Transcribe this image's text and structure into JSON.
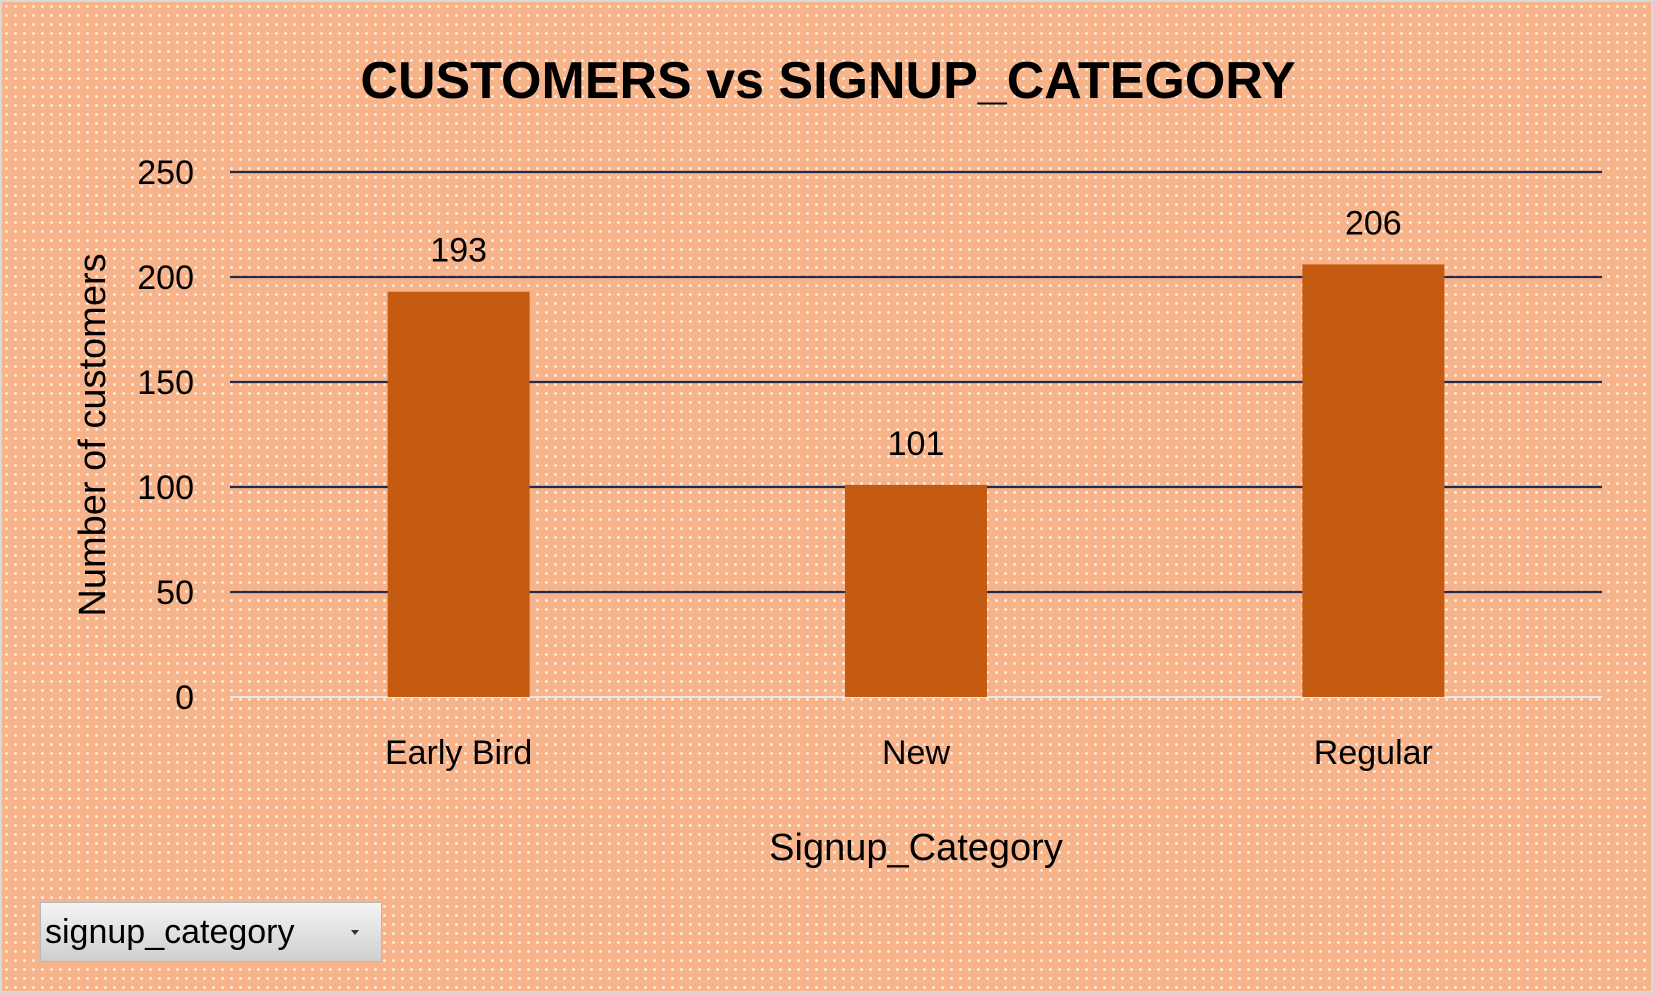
{
  "chart_data": {
    "type": "bar",
    "title": "CUSTOMERS vs SIGNUP_CATEGORY",
    "xlabel": "Signup_Category",
    "ylabel": "Number of customers",
    "categories": [
      "Early Bird",
      "New",
      "Regular"
    ],
    "values": [
      193,
      101,
      206
    ],
    "data_labels": [
      "193",
      "101",
      "206"
    ],
    "yticks": [
      "0",
      "50",
      "100",
      "150",
      "200",
      "250"
    ],
    "ylim": [
      0,
      250
    ],
    "grid": true,
    "legend": "none",
    "bar_color": "#c55a11",
    "gridline_color": "#1f2a4f"
  },
  "field_button": {
    "label": "signup_category",
    "icon": "chevron-down-icon"
  }
}
